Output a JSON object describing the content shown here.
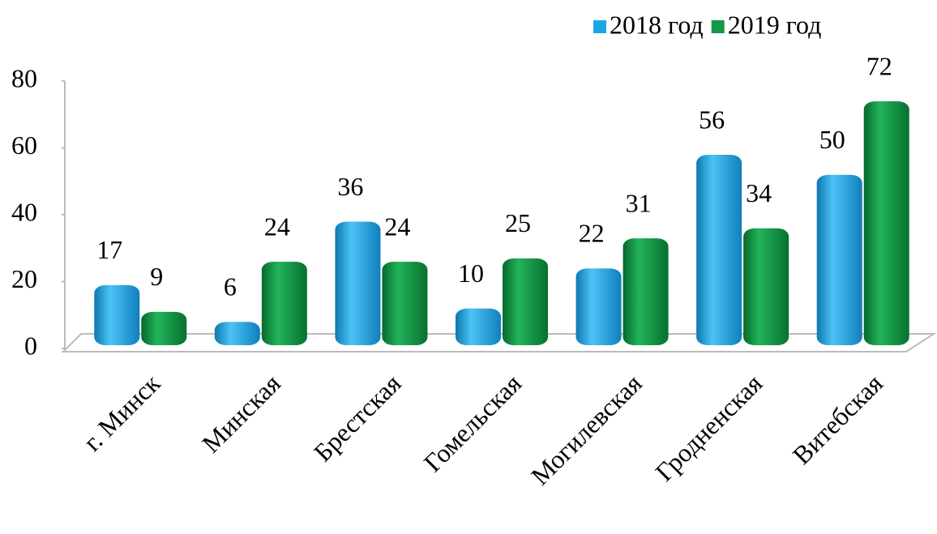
{
  "chart_data": {
    "type": "bar",
    "categories": [
      "г. Минск",
      "Минская",
      "Брестская",
      "Гомельская",
      "Могилевская",
      "Гродненская",
      "Витебская"
    ],
    "series": [
      {
        "name": "2018 год",
        "color": "#1ba6e3",
        "values": [
          17,
          6,
          36,
          10,
          22,
          56,
          50
        ]
      },
      {
        "name": "2019 год",
        "color": "#0e9a46",
        "values": [
          9,
          24,
          24,
          25,
          31,
          34,
          72
        ]
      }
    ],
    "ylim": [
      0,
      80
    ],
    "yticks": [
      0,
      20,
      40,
      60,
      80
    ],
    "grid": false,
    "legend": "top-right"
  }
}
